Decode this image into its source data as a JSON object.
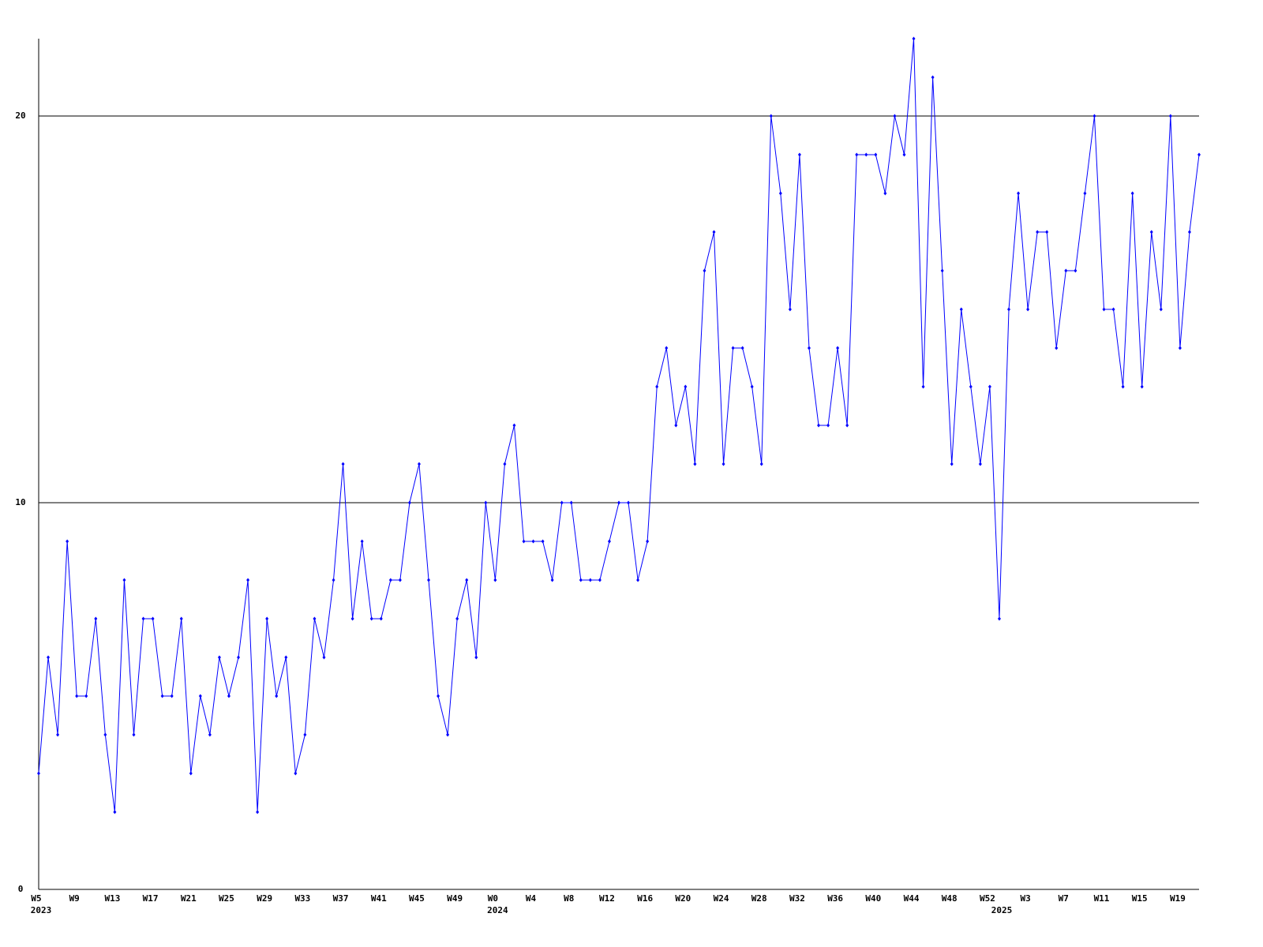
{
  "chart_data": {
    "type": "line",
    "categories": [
      "W5",
      null,
      null,
      null,
      "W9",
      null,
      null,
      null,
      "W13",
      null,
      null,
      null,
      "W17",
      null,
      null,
      null,
      "W21",
      null,
      null,
      null,
      "W25",
      null,
      null,
      null,
      "W29",
      null,
      null,
      null,
      "W33",
      null,
      null,
      null,
      "W37",
      null,
      null,
      null,
      "W41",
      null,
      null,
      null,
      "W45",
      null,
      null,
      null,
      "W49",
      null,
      null,
      null,
      "W0",
      null,
      null,
      null,
      "W4",
      null,
      null,
      null,
      "W8",
      null,
      null,
      null,
      "W12",
      null,
      null,
      null,
      "W16",
      null,
      null,
      null,
      "W20",
      null,
      null,
      null,
      "W24",
      null,
      null,
      null,
      "W28",
      null,
      null,
      null,
      "W32",
      null,
      null,
      null,
      "W36",
      null,
      null,
      null,
      "W40",
      null,
      null,
      null,
      "W44",
      null,
      null,
      null,
      "W48",
      null,
      null,
      null,
      "W52",
      null,
      null,
      null,
      "W3",
      null,
      null,
      null,
      "W7",
      null,
      null,
      null,
      "W11",
      null,
      null,
      null,
      "W15",
      null,
      null,
      null,
      "W19",
      null,
      null
    ],
    "years": [
      "2023",
      null,
      null,
      null,
      null,
      null,
      null,
      null,
      null,
      null,
      null,
      null,
      null,
      null,
      null,
      null,
      null,
      null,
      null,
      null,
      null,
      null,
      null,
      null,
      null,
      null,
      null,
      null,
      null,
      null,
      null,
      null,
      null,
      null,
      null,
      null,
      null,
      null,
      null,
      null,
      null,
      null,
      null,
      null,
      null,
      null,
      null,
      null,
      "2024",
      null,
      null,
      null,
      null,
      null,
      null,
      null,
      null,
      null,
      null,
      null,
      null,
      null,
      null,
      null,
      null,
      null,
      null,
      null,
      null,
      null,
      null,
      null,
      null,
      null,
      null,
      null,
      null,
      null,
      null,
      null,
      null,
      null,
      null,
      null,
      null,
      null,
      null,
      null,
      null,
      null,
      null,
      null,
      null,
      null,
      null,
      null,
      null,
      null,
      null,
      null,
      null,
      "2025",
      null,
      null,
      null,
      null,
      null,
      null,
      null,
      null,
      null,
      null,
      null,
      null,
      null,
      null,
      null,
      null,
      null,
      null,
      null,
      null
    ],
    "values": [
      3,
      6,
      4,
      9,
      5,
      5,
      7,
      4,
      2,
      8,
      4,
      7,
      7,
      5,
      5,
      7,
      3,
      5,
      4,
      6,
      5,
      6,
      8,
      2,
      7,
      5,
      6,
      3,
      4,
      7,
      6,
      8,
      11,
      7,
      9,
      7,
      7,
      8,
      8,
      10,
      11,
      8,
      5,
      4,
      7,
      8,
      6,
      10,
      8,
      11,
      12,
      9,
      9,
      9,
      8,
      10,
      10,
      8,
      8,
      8,
      9,
      10,
      10,
      8,
      9,
      13,
      14,
      12,
      13,
      11,
      16,
      17,
      11,
      14,
      14,
      13,
      11,
      20,
      18,
      15,
      19,
      14,
      12,
      12,
      14,
      12,
      19,
      19,
      19,
      18,
      20,
      19,
      22,
      13,
      21,
      16,
      11,
      15,
      13,
      11,
      13,
      7,
      15,
      18,
      15,
      17,
      17,
      14,
      16,
      16,
      18,
      20,
      15,
      15,
      13,
      18,
      13,
      17,
      15,
      20,
      14,
      17,
      19
    ],
    "color": "#0000ff",
    "ylim": [
      0,
      22
    ],
    "yticks": [
      0,
      10,
      20
    ],
    "grid": true
  }
}
